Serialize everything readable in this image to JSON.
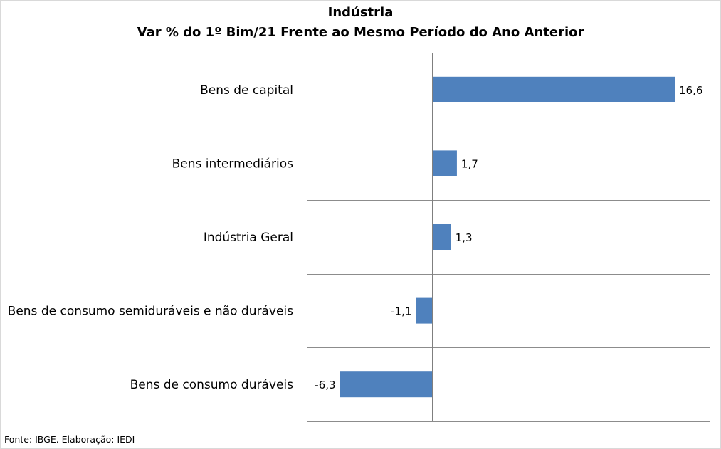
{
  "chart_data": {
    "type": "bar",
    "orientation": "horizontal",
    "title": "Indústria",
    "subtitle": "Var % do 1º Bim/21 Frente ao Mesmo Período do Ano Anterior",
    "categories": [
      "Bens de capital",
      "Bens intermediários",
      "Indústria Geral",
      "Bens de consumo semiduráveis e não duráveis",
      "Bens de consumo duráveis"
    ],
    "values": [
      16.6,
      1.7,
      1.3,
      -1.1,
      -6.3
    ],
    "value_labels": [
      "16,6",
      "1,7",
      "1,3",
      "-1,1",
      "-6,3"
    ],
    "bar_color": "#4f81bd",
    "grid": true,
    "legend": "none"
  },
  "source": "Fonte: IBGE. Elaboração: IEDI"
}
